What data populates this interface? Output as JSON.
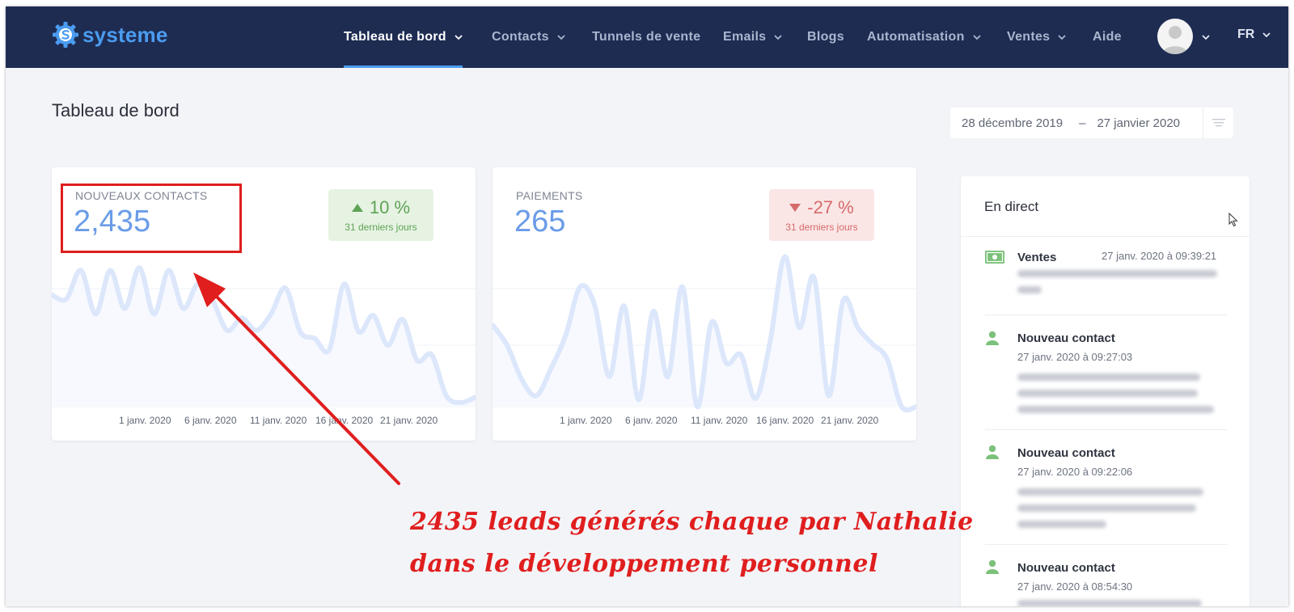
{
  "app": {
    "logo_text": "systeme"
  },
  "nav": {
    "items": [
      {
        "label": "Tableau de bord",
        "active": true,
        "dropdown": true
      },
      {
        "label": "Contacts",
        "active": false,
        "dropdown": true
      },
      {
        "label": "Tunnels de vente",
        "active": false,
        "dropdown": false
      },
      {
        "label": "Emails",
        "active": false,
        "dropdown": true
      },
      {
        "label": "Blogs",
        "active": false,
        "dropdown": false
      },
      {
        "label": "Automatisation",
        "active": false,
        "dropdown": true
      },
      {
        "label": "Ventes",
        "active": false,
        "dropdown": true
      },
      {
        "label": "Aide",
        "active": false,
        "dropdown": false
      }
    ],
    "language": "FR"
  },
  "page": {
    "title": "Tableau de bord",
    "date_start": "28 décembre 2019",
    "date_sep": "–",
    "date_end": "27 janvier 2020"
  },
  "cards": {
    "contacts": {
      "label": "NOUVEAUX CONTACTS",
      "value": "2,435",
      "change": "10 %",
      "change_direction": "up",
      "change_period": "31 derniers jours"
    },
    "payments": {
      "label": "PAIEMENTS",
      "value": "265",
      "change": "-27 %",
      "change_direction": "down",
      "change_period": "31 derniers jours"
    }
  },
  "chart_data": [
    {
      "type": "area",
      "x_tick_labels": [
        "1 janv. 2020",
        "6 janv. 2020",
        "11 janv. 2020",
        "16 janv. 2020",
        "21 janv. 2020"
      ],
      "values": [
        82,
        79,
        100,
        68,
        100,
        72,
        102,
        68,
        100,
        72,
        90,
        78,
        56,
        65,
        56,
        68,
        87,
        55,
        50,
        42,
        90,
        55,
        67,
        45,
        64,
        34,
        38,
        8,
        3,
        7
      ],
      "ylim": [
        0,
        140
      ],
      "grid": true,
      "color": "#dce7fb"
    },
    {
      "type": "area",
      "x_tick_labels": [
        "1 janv. 2020",
        "6 janv. 2020",
        "11 janv. 2020",
        "16 janv. 2020",
        "21 janv. 2020"
      ],
      "values": [
        60,
        45,
        20,
        8,
        28,
        52,
        88,
        74,
        22,
        74,
        5,
        70,
        22,
        88,
        0,
        62,
        32,
        38,
        6,
        48,
        110,
        58,
        95,
        8,
        78,
        58,
        46,
        35,
        0,
        0
      ],
      "ylim": [
        0,
        140
      ],
      "grid": true,
      "color": "#dce7fb"
    }
  ],
  "live": {
    "title": "En direct",
    "items": [
      {
        "icon": "money-icon",
        "title": "Ventes",
        "time": "27 janv. 2020 à 09:39:21"
      },
      {
        "icon": "user-icon",
        "title": "Nouveau contact",
        "time": "27 janv. 2020 à 09:27:03"
      },
      {
        "icon": "user-icon",
        "title": "Nouveau contact",
        "time": "27 janv. 2020 à 09:22:06"
      },
      {
        "icon": "user-icon",
        "title": "Nouveau contact",
        "time": "27 janv. 2020 à 08:54:30"
      }
    ]
  },
  "annotation": {
    "line1": "2435 leads générés chaque par  Nathalie",
    "line2": "dans le développement personnel",
    "color": "#e01e1e"
  },
  "colors": {
    "navbar": "#1e2c52",
    "accent": "#4b9cf0",
    "value": "#6a9ce8",
    "up": "#5fa356",
    "down": "#d56a6a"
  }
}
